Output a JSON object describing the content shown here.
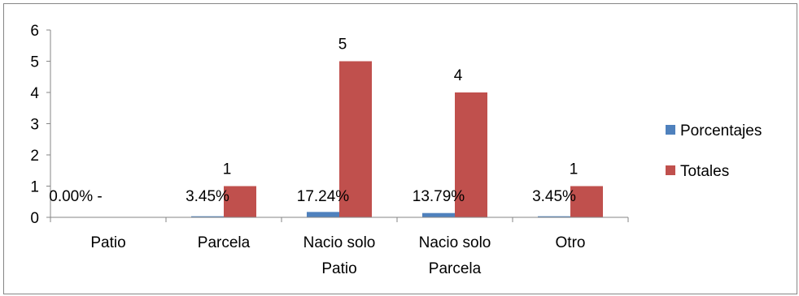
{
  "chart_data": {
    "type": "bar",
    "categories": [
      [
        "Patio"
      ],
      [
        "Parcela"
      ],
      [
        "Nacio solo",
        "Patio"
      ],
      [
        "Nacio solo",
        "Parcela"
      ],
      [
        "Otro"
      ]
    ],
    "series": [
      {
        "name": "Porcentajes",
        "color": "#4F81BD",
        "values": [
          0.0,
          0.0345,
          0.1724,
          0.1379,
          0.0345
        ],
        "labels": [
          "0.00% -",
          "3.45%",
          "17.24%",
          "13.79%",
          "3.45%"
        ]
      },
      {
        "name": "Totales",
        "color": "#C0504D",
        "values": [
          0,
          1,
          5,
          4,
          1
        ],
        "labels": [
          "",
          "1",
          "5",
          "4",
          "1"
        ]
      }
    ],
    "yticks": [
      "0",
      "1",
      "2",
      "3",
      "4",
      "5",
      "6"
    ],
    "ylim": [
      0,
      6
    ],
    "grid": false,
    "legend_position": "right"
  }
}
